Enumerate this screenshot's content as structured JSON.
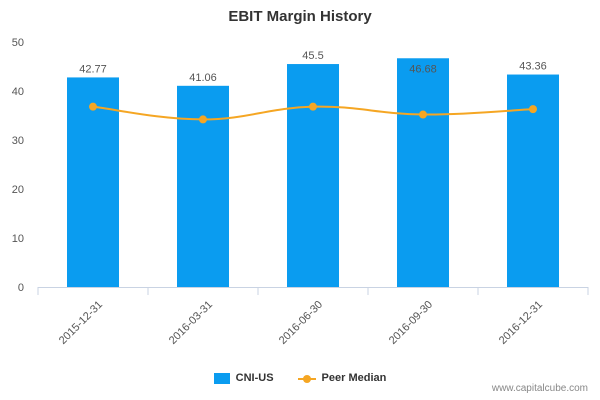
{
  "chart_data": {
    "type": "bar",
    "title": "EBIT Margin History",
    "categories": [
      "2015-12-31",
      "2016-03-31",
      "2016-06-30",
      "2016-09-30",
      "2016-12-31"
    ],
    "series": [
      {
        "name": "CNI-US",
        "type": "bar",
        "values": [
          42.77,
          41.06,
          45.5,
          46.68,
          43.36
        ],
        "labels": [
          "42.77",
          "41.06",
          "45.5",
          "46.68",
          "43.36"
        ]
      },
      {
        "name": "Peer Median",
        "type": "line",
        "values": [
          36.8,
          34.2,
          36.8,
          35.2,
          36.3
        ]
      }
    ],
    "ylim": [
      0,
      50
    ],
    "yticks": [
      0,
      10,
      20,
      30,
      40,
      50
    ],
    "grid": false,
    "legend_position": "bottom-center",
    "colors": {
      "bar": "#0a9cf0",
      "line": "#f5a623",
      "axis": "#c9d3e3"
    }
  },
  "footer": {
    "watermark": "www.capitalcube.com"
  }
}
